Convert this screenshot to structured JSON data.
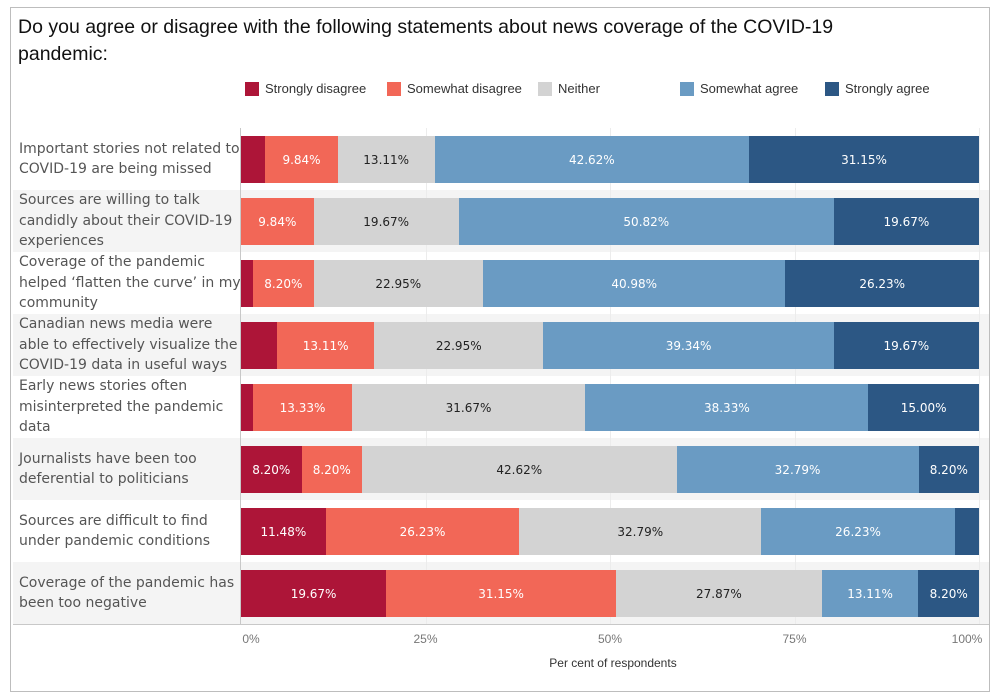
{
  "chart_data": {
    "type": "bar",
    "orientation": "horizontal",
    "stacked": true,
    "title": "Do you agree or disagree with the following statements about news coverage of the COVID-19 pandemic:",
    "xlabel": "Per cent of respondents",
    "ylabel": "",
    "xlim": [
      0,
      100
    ],
    "xticks": [
      "0%",
      "25%",
      "50%",
      "75%",
      "100%"
    ],
    "xtick_values": [
      0,
      25,
      50,
      75,
      100
    ],
    "legend_position": "top",
    "categories": [
      "Important stories not related to COVID-19 are being missed",
      "Sources are willing to talk candidly about their COVID-19 experiences",
      "Coverage of the pandemic helped ‘flatten the curve’ in my community",
      "Canadian news media were able to effectively visualize the COVID-19 data in useful ways",
      "Early news stories often misinterpreted the pandemic data",
      "Journalists have been too deferential to politicians",
      "Sources are difficult to find under pandemic conditions",
      "Coverage of the pandemic has been too negative"
    ],
    "series": [
      {
        "name": "Strongly disagree",
        "color": "#ad1538",
        "text_color": "#ffffff",
        "values": [
          3.28,
          0,
          1.64,
          4.92,
          1.67,
          8.2,
          11.48,
          19.67
        ],
        "labels": [
          "",
          "",
          "",
          "",
          "",
          "8.20%",
          "11.48%",
          "19.67%"
        ]
      },
      {
        "name": "Somewhat disagree",
        "color": "#f26757",
        "text_color": "#ffffff",
        "values": [
          9.84,
          9.84,
          8.2,
          13.11,
          13.33,
          8.2,
          26.23,
          31.15
        ],
        "labels": [
          "9.84%",
          "9.84%",
          "8.20%",
          "13.11%",
          "13.33%",
          "8.20%",
          "26.23%",
          "31.15%"
        ]
      },
      {
        "name": "Neither",
        "color": "#d3d3d3",
        "text_color": "#222222",
        "values": [
          13.11,
          19.67,
          22.95,
          22.95,
          31.67,
          42.62,
          32.79,
          27.87
        ],
        "labels": [
          "13.11%",
          "19.67%",
          "22.95%",
          "22.95%",
          "31.67%",
          "42.62%",
          "32.79%",
          "27.87%"
        ]
      },
      {
        "name": "Somewhat agree",
        "color": "#6a9bc3",
        "text_color": "#ffffff",
        "values": [
          42.62,
          50.82,
          40.98,
          39.34,
          38.33,
          32.79,
          26.23,
          13.11
        ],
        "labels": [
          "42.62%",
          "50.82%",
          "40.98%",
          "39.34%",
          "38.33%",
          "32.79%",
          "26.23%",
          "13.11%"
        ]
      },
      {
        "name": "Strongly agree",
        "color": "#2c5784",
        "text_color": "#ffffff",
        "values": [
          31.15,
          19.67,
          26.23,
          19.67,
          15.0,
          8.2,
          3.28,
          8.2
        ],
        "labels": [
          "31.15%",
          "19.67%",
          "26.23%",
          "19.67%",
          "15.00%",
          "8.20%",
          "",
          "8.20%"
        ]
      }
    ],
    "grid": true
  }
}
